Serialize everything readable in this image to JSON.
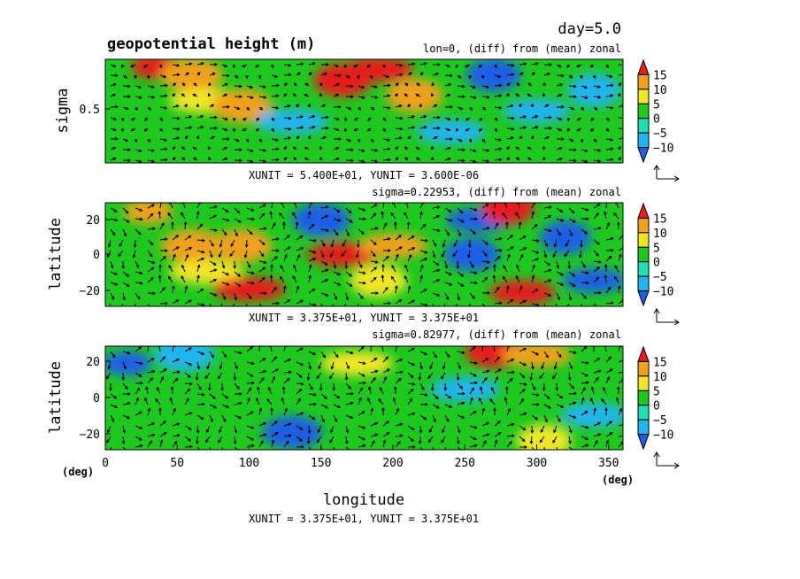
{
  "figure": {
    "title": "geopotential height (m)",
    "time_label": "day=5.0",
    "xlabel": "longitude",
    "x_unit_left": "(deg)",
    "x_unit_right": "(deg)",
    "bottom_note": "XUNIT = 3.375E+01, YUNIT = 3.375E+01"
  },
  "chart_data": [
    {
      "type": "heatmap",
      "name": "sigma-cross-section",
      "subtitle": "lon=0, (diff) from (mean) zonal",
      "ylabel": "sigma",
      "y_ticks": [
        "0.5"
      ],
      "x_ticks": [],
      "xlim": [
        0,
        360
      ],
      "ylim": [
        0,
        1
      ],
      "vector_scale": "XUNIT = 5.400E+01, YUNIT = 3.600E-06",
      "colorbar_labels": [
        "15",
        "10",
        "5",
        "0",
        "−5",
        "−10"
      ],
      "vector_overlay": true,
      "anomaly_cells": [
        {
          "x": 35,
          "y": 0.93,
          "value": 15
        },
        {
          "x": 60,
          "y": 0.85,
          "value": 10
        },
        {
          "x": 70,
          "y": 0.6,
          "value": 5
        },
        {
          "x": 95,
          "y": 0.55,
          "value": 10
        },
        {
          "x": 130,
          "y": 0.4,
          "value": -5
        },
        {
          "x": 165,
          "y": 0.8,
          "value": 15
        },
        {
          "x": 190,
          "y": 0.9,
          "value": 15
        },
        {
          "x": 215,
          "y": 0.65,
          "value": 10
        },
        {
          "x": 240,
          "y": 0.3,
          "value": -5
        },
        {
          "x": 270,
          "y": 0.85,
          "value": -10
        },
        {
          "x": 300,
          "y": 0.5,
          "value": -5
        },
        {
          "x": 340,
          "y": 0.7,
          "value": -5
        }
      ]
    },
    {
      "type": "heatmap",
      "name": "upper-level-map",
      "subtitle": "sigma=0.22953, (diff) from (mean) zonal",
      "ylabel": "latitude",
      "y_ticks": [
        "20",
        "0",
        "−20"
      ],
      "x_ticks": [],
      "xlim": [
        0,
        360
      ],
      "ylim": [
        -30,
        30
      ],
      "vector_scale": "XUNIT = 3.375E+01, YUNIT = 3.375E+01",
      "colorbar_labels": [
        "15",
        "10",
        "5",
        "0",
        "−5",
        "−10"
      ],
      "vector_overlay": true,
      "anomaly_cells": [
        {
          "x": 30,
          "y": 25,
          "value": 10
        },
        {
          "x": 60,
          "y": 5,
          "value": 10
        },
        {
          "x": 70,
          "y": -10,
          "value": 5
        },
        {
          "x": 95,
          "y": 5,
          "value": 10
        },
        {
          "x": 100,
          "y": -20,
          "value": 15
        },
        {
          "x": 150,
          "y": 20,
          "value": -10
        },
        {
          "x": 165,
          "y": 0,
          "value": 15
        },
        {
          "x": 190,
          "y": -15,
          "value": 5
        },
        {
          "x": 200,
          "y": 5,
          "value": 10
        },
        {
          "x": 255,
          "y": 0,
          "value": -10
        },
        {
          "x": 260,
          "y": 20,
          "value": -10
        },
        {
          "x": 280,
          "y": 27,
          "value": 15
        },
        {
          "x": 290,
          "y": -22,
          "value": 15
        },
        {
          "x": 320,
          "y": 10,
          "value": -10
        },
        {
          "x": 340,
          "y": -15,
          "value": -10
        }
      ]
    },
    {
      "type": "heatmap",
      "name": "lower-level-map",
      "subtitle": "sigma=0.82977, (diff) from (mean) zonal",
      "ylabel": "latitude",
      "y_ticks": [
        "20",
        "0",
        "−20"
      ],
      "x_ticks": [
        "0",
        "50",
        "100",
        "150",
        "200",
        "250",
        "300",
        "350"
      ],
      "xlim": [
        0,
        360
      ],
      "ylim": [
        -30,
        30
      ],
      "vector_scale": "",
      "colorbar_labels": [
        "15",
        "10",
        "5",
        "0",
        "−5",
        "−10"
      ],
      "vector_overlay": true,
      "anomaly_cells": [
        {
          "x": 15,
          "y": 20,
          "value": -10
        },
        {
          "x": 55,
          "y": 25,
          "value": -5
        },
        {
          "x": 90,
          "y": 0,
          "value": 0
        },
        {
          "x": 130,
          "y": -20,
          "value": -10
        },
        {
          "x": 175,
          "y": 20,
          "value": 5
        },
        {
          "x": 200,
          "y": -10,
          "value": 0
        },
        {
          "x": 250,
          "y": 5,
          "value": -5
        },
        {
          "x": 270,
          "y": 27,
          "value": 15
        },
        {
          "x": 300,
          "y": 25,
          "value": 10
        },
        {
          "x": 305,
          "y": -25,
          "value": 5
        },
        {
          "x": 340,
          "y": -10,
          "value": -5
        }
      ]
    }
  ],
  "colors": {
    "levels": [
      "#1e5fe6",
      "#23b4f0",
      "#1ee0b4",
      "#1ec81e",
      "#f0e628",
      "#f0a01e",
      "#e61e1e"
    ]
  }
}
